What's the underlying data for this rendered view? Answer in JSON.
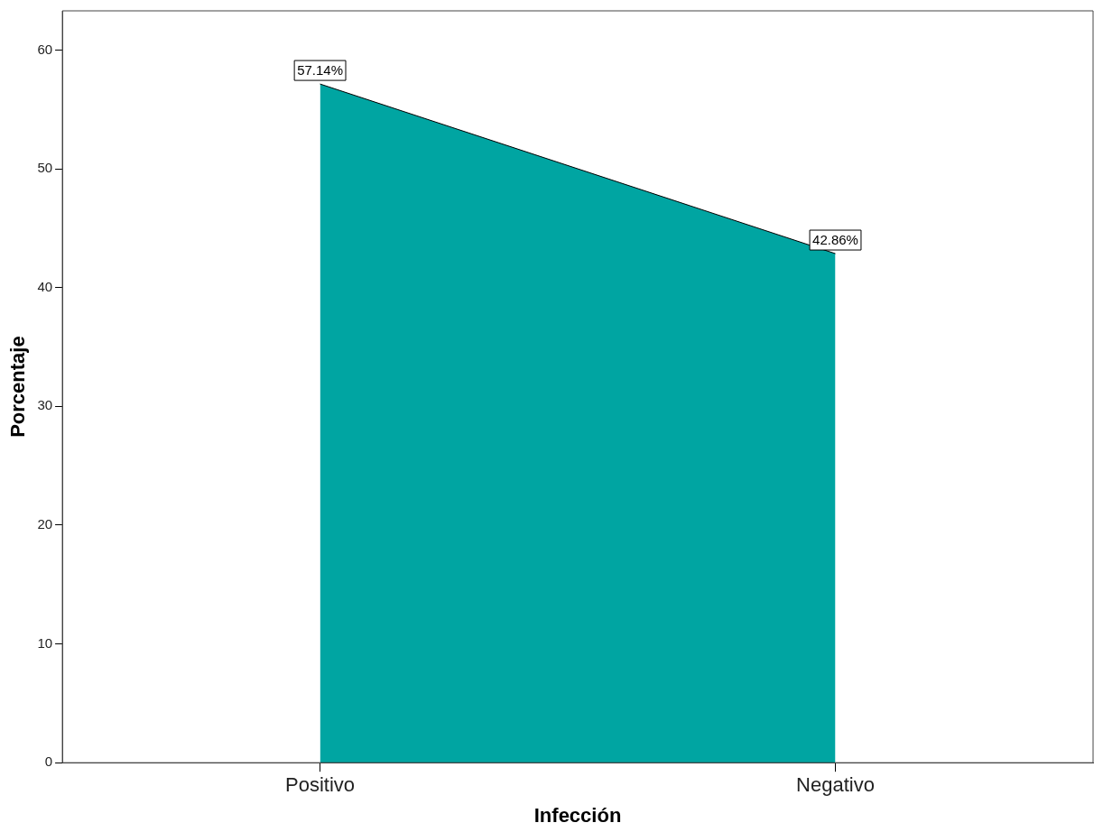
{
  "chart_data": {
    "type": "area",
    "categories": [
      "Positivo",
      "Negativo"
    ],
    "series": [
      {
        "color": "#00a5a2",
        "values": [
          57.14,
          42.86
        ],
        "value_labels": [
          "57.14%",
          "42.86%"
        ]
      }
    ],
    "xlabel": "Infección",
    "ylabel": "Porcentaje",
    "ylim": [
      0,
      63.3
    ],
    "yticks": [
      0,
      10,
      20,
      30,
      40,
      50,
      60
    ],
    "grid": false,
    "legend": false
  }
}
